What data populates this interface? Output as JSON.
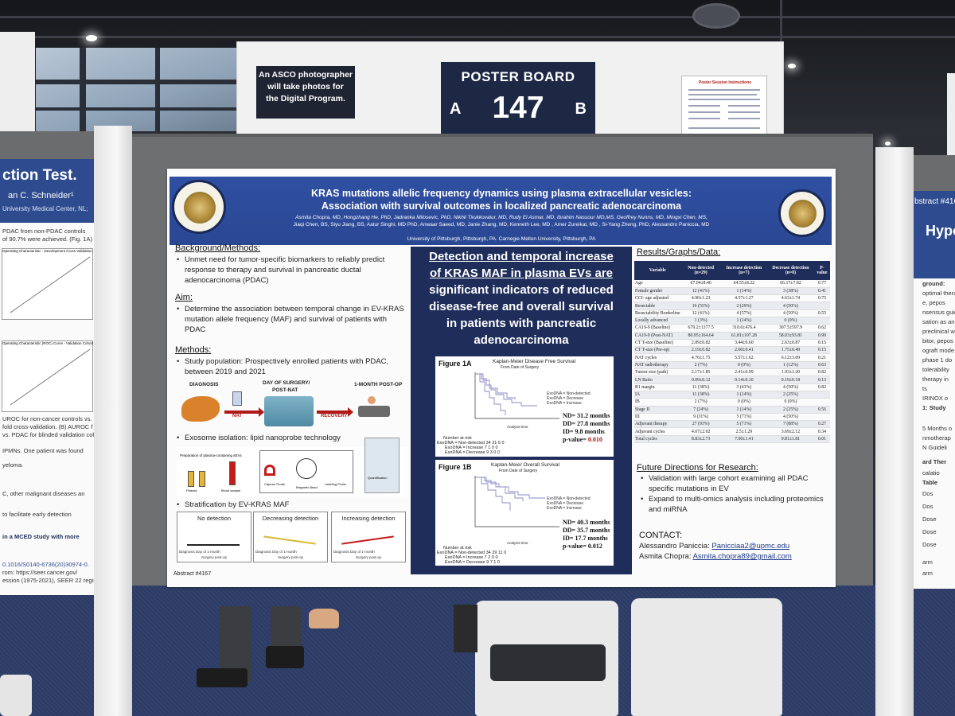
{
  "hall": {
    "photo_note_lines": [
      "An ASCO photographer",
      "will take photos for",
      "the Digital Program."
    ],
    "poster_board": {
      "label": "POSTER BOARD",
      "side_a": "A",
      "number": "147",
      "side_b": "B"
    },
    "session_sheet_title": "Poster Session Instructions"
  },
  "left_poster": {
    "title": "ction Test.",
    "author": "an C. Schneider¹",
    "affiliation": "University Medical Center, NL;",
    "lines": [
      "PDAC from non-PDAC controls",
      "of 90.7% were achieved. (Fig. 1A)",
      "Operating Characteristic - Development Cross Validation",
      "Operating Characteristic (ROC) Curve - Validation Cohort",
      "UROC for non-cancer controls vs. PDA",
      "fold cross-validation. (B) AUROC f",
      "vs. PDAC for blinded validation cohort",
      "IPMNs. One patient was found",
      "yeloma.",
      "C, other malignant diseases an",
      "to facilitate early detection",
      "in a MCED study with more",
      "0.1016/S0140-6736(20)30974-0.",
      "rom: https://seer.cancer.gov/",
      "ession (1975-2021), SEER 22 registr"
    ]
  },
  "right_poster": {
    "abstract": "bstract #416",
    "title": "Hypo",
    "lines": [
      "ground:",
      "optimal therap",
      "e, pepos",
      "nsensus guid",
      "sation as an",
      "preclinical w",
      "bitor, pepos",
      "ograft mode",
      "phase 1 do",
      "tolerability",
      "therapy in",
      "ts",
      "IRINOX o",
      "1: Study",
      "5 Months o",
      "nmotherap",
      "N Guideli",
      "ard Ther",
      "calatio",
      "Table",
      "Dos",
      "Dos",
      "Dose",
      "Dose",
      "Dose",
      "arm",
      "arm"
    ]
  },
  "poster": {
    "title_line1": "KRAS mutations allelic frequency dynamics using plasma extracellular vesicles:",
    "title_line2": "Association with survival outcomes in localized pancreatic adenocarcinoma",
    "authors_line1": "Asmita Chopra, MD, Hongzhang He, PhD, Jadranka Milosevic, PhD, Nikhil Tirukkovalur, MD, Rudy El Asmar, MD, Ibrahim Nassour MD,MS, Geoffrey Nunns, MD, Mingxi Chen, MS,",
    "authors_line2": "Jiaqi Chen, BS, Siyu Jiang, BS, Aatur Singhi, MD PhD, Anwaar Saeed, MD, Janie Zhang, MD, Kenneth Lee, MD , Amer Zureikat, MD , Si-Yang Zheng, PhD, Alessandro Paniccia, MD",
    "authors_line3": "University of Pittsburgh, Pittsburgh, PA. Carnegie Mellon University, Pittsburgh, PA",
    "left_seal_text": "UNIVERSITY OF PITTSBURGH",
    "right_seal_text": "CARNEGIE MELLON UNIVERSITY",
    "background": {
      "heading": "Background/Methods:",
      "bullet": "Unmet need for tumor-specific biomarkers to reliably predict response to therapy and survival in pancreatic ductal adenocarcinoma (PDAC)"
    },
    "aim": {
      "heading": "Aim:",
      "bullet": "Determine the association between temporal change in EV-KRAS mutation allele frequency (MAF) and survival of patients with PDAC"
    },
    "methods": {
      "heading": "Methods:",
      "bullet": "Study population: Prospectively enrolled patients with PDAC, between 2019 and 2021",
      "flow": {
        "diagnosis": "DIAGNOSIS",
        "day_of_surgery": "DAY OF SURGERY/",
        "post_nat": "POST-NAT",
        "one_month": "1-MONTH POST-OP",
        "nat": "NAT",
        "recovery": "RECOVERY"
      },
      "exosome_bullet": "Exosome isolation: lipid nanoprobe technology",
      "exosome_labels": [
        "Preparation of plasma-containing sEVs",
        "Plasma",
        "Blood sample",
        "Capture Probe",
        "Magnetic Bead",
        "Labeling Probe",
        "Quantification"
      ],
      "strat_bullet": "Stratification by EV-KRAS MAF",
      "strat_boxes": [
        {
          "title": "No detection",
          "axis": "Diagnosis  Day of   1-month"
        },
        {
          "title": "Decreasing detection",
          "axis": "Diagnosis  Day of   1-month"
        },
        {
          "title": "Increasing detection",
          "axis": "Diagnosis  Day of   1-month"
        }
      ],
      "strat_axis_sub": "Surgery   post-op"
    },
    "abstract_no": "Abstract #4167",
    "center": {
      "line1": "Detection and temporal increase",
      "line2": "of KRAS MAF in plasma EVs are",
      "line3": "significant indicators of reduced",
      "line4": "disease-free and overall survival",
      "line5": "in patients with pancreatic",
      "line6": "adenocarcinoma"
    },
    "figure_1a": {
      "label": "Figure 1A",
      "title": "Kaplan-Meier Disease Free Survival",
      "subtitle": "From Date of Surgery",
      "legend": [
        "ExoDNA = Non-detected",
        "ExoDNA = Decrease",
        "ExoDNA = Increase"
      ],
      "stats": [
        "ND= 31.2 months",
        "DD= 27.8 months",
        "ID= 9.8 months"
      ],
      "p_label": "p-value= ",
      "p_value": "0.010",
      "xlabel": "Analysis time",
      "x_ticks": [
        "0",
        "20",
        "40",
        "60"
      ],
      "risk_head": "Number at risk",
      "risk_rows": [
        "ExoDNA = Non-detected 34    21    6    0",
        "ExoDNA = Increase  7    1    0    0",
        "ExoDNA = Decrease  9    3    0    0"
      ]
    },
    "figure_1b": {
      "label": "Figure 1B",
      "title": "Kaplan-Meier Overall Survival",
      "subtitle": "From Date of Surgery",
      "legend": [
        "ExoDNA = Non-detected",
        "ExoDNA = Decrease",
        "ExoDNA = Increase"
      ],
      "stats": [
        "ND= 40.3 months",
        "DD= 35.7 months",
        "ID= 17.7 months"
      ],
      "p_label": "p-value= 0.012",
      "xlabel": "Analysis time",
      "x_ticks": [
        "0",
        "20",
        "40",
        "60"
      ],
      "risk_head": "Number at risk",
      "risk_rows": [
        "ExoDNA = Non-detected 34    29    11    0",
        "ExoDNA = Increase  7    2    0    0",
        "ExoDNA = Decrease  9    7    1    0"
      ]
    },
    "results": {
      "heading": "Results/Graphs/Data:",
      "columns": [
        "Variable",
        "Non-detected (n=29)",
        "Increase detection (n=7)",
        "Decrease detection (n=8)",
        "P-value"
      ],
      "rows": [
        [
          "Age",
          "67.04±8.46",
          "64.55±8.22",
          "66.17±7.82",
          "0.77"
        ],
        [
          "Female gender",
          "12 (41%)",
          "1 (14%)",
          "3 (38%)",
          "0.41"
        ],
        [
          "CCI- age adjusted",
          "4.90±1.23",
          "4.57±1.27",
          "4.63±1.74",
          "0.75"
        ],
        [
          "Resectable",
          "16 (55%)",
          "2 (29%)",
          "4 (50%)",
          ""
        ],
        [
          "Resectability   Borderline",
          "12 (41%)",
          "4 (57%)",
          "4 (50%)",
          "0.55"
        ],
        [
          "Locally advanced",
          "1 (3%)",
          "1 (14%)",
          "0 (0%)",
          ""
        ],
        [
          "CA19-9 (Baseline)",
          "679.2±1377.5",
          "310.6±476.4",
          "307.5±597.9",
          "0.62"
        ],
        [
          "CA19-9 (Post-NAT)",
          "80.95±164.64",
          "61.81±107.28",
          "58.03±93.81",
          "0.90"
        ],
        [
          "CT T-size (Baseline)",
          "2.89±0.82",
          "3.44±0.60",
          "2.63±0.87",
          "0.15"
        ],
        [
          "CT T-size (Pre-op)",
          "2.19±0.82",
          "2.60±0.41",
          "1.75±0.49",
          "0.15"
        ],
        [
          "NAT cycles",
          "4.76±1.75",
          "5.57±1.62",
          "6.12±3.09",
          "0.21"
        ],
        [
          "NAT radiotherapy",
          "2 (7%)",
          "0 (0%)",
          "1 (12%)",
          "0.63"
        ],
        [
          "Tumor size (path)",
          "2.17±1.85",
          "2.41±0.99",
          "1.93±1.20",
          "0.82"
        ],
        [
          "LN Ratio",
          "0.09±0.12",
          "0.14±0.10",
          "0.19±0.18",
          "0.13"
        ],
        [
          "R1 margin",
          "11 (38%)",
          "3 (43%)",
          "4 (50%)",
          "0.82"
        ],
        [
          "IA",
          "11 (38%)",
          "1 (14%)",
          "2 (25%)",
          ""
        ],
        [
          "IB",
          "2 (7%)",
          "0 (0%)",
          "0 (0%)",
          ""
        ],
        [
          "Stage   II",
          "7 (24%)",
          "1 (14%)",
          "2 (25%)",
          "0.56"
        ],
        [
          "III",
          "9 (31%)",
          "5 (71%)",
          "4 (50%)",
          ""
        ],
        [
          "Adjuvant therapy",
          "27 (93%)",
          "5 (71%)",
          "7 (88%)",
          "0.27"
        ],
        [
          "Adjuvant cycles",
          "4.07±2.02",
          "2.5±1.29",
          "3.69±2.12",
          "0.34"
        ],
        [
          "Total cycles",
          "8.83±2.73",
          "7.00±1.41",
          "9.81±1.81",
          "0.01"
        ]
      ]
    },
    "future": {
      "heading": "Future Directions for Research:",
      "bullets": [
        "Validation with large cohort examining all PDAC specific mutations in EV",
        "Expand to multi-omics analysis including proteomics and miRNA"
      ]
    },
    "contact": {
      "heading": "CONTACT:",
      "people": [
        {
          "name": "Alessandro Paniccia: ",
          "email": "Panicciaa2@upmc.edu"
        },
        {
          "name": "Asmita Chopra: ",
          "email": "Asmita.chopra89@gmail.com"
        }
      ]
    }
  },
  "colors": {
    "navy": "#1e2d5a",
    "banner_blue": "#2f4fa2",
    "accent_red": "#b01818",
    "curve_purple": "#8a8ac6"
  }
}
